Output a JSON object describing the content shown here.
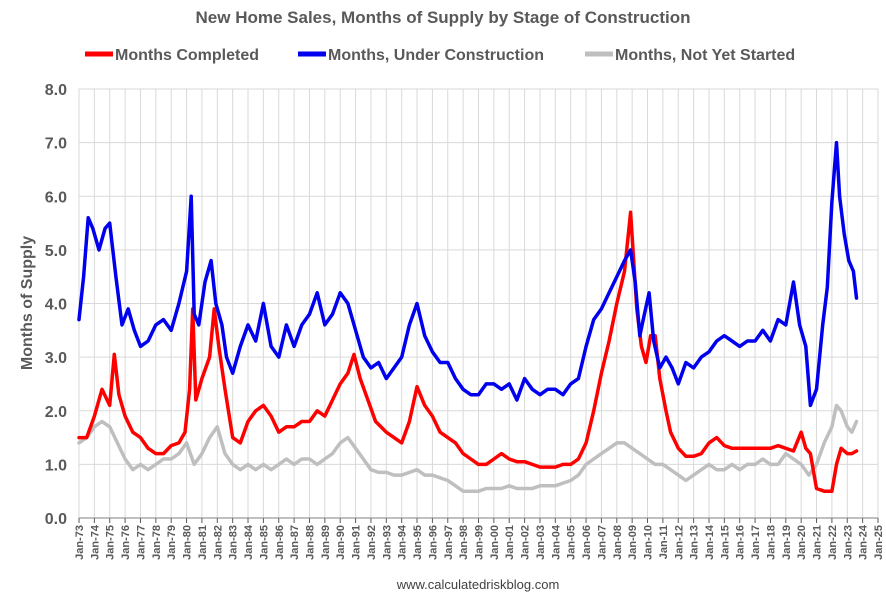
{
  "chart_data": {
    "type": "line",
    "title": "New Home Sales, Months of Supply by Stage of Construction",
    "ylabel": "Months of Supply",
    "xlabel": "",
    "source": "www.calculatedriskblog.com",
    "ylim": [
      0,
      8
    ],
    "yticks": [
      "0.0",
      "1.0",
      "2.0",
      "3.0",
      "4.0",
      "5.0",
      "6.0",
      "7.0",
      "8.0"
    ],
    "x_range": [
      1973,
      2025
    ],
    "xticks": [
      "Jan-73",
      "Jan-74",
      "Jan-75",
      "Jan-76",
      "Jan-77",
      "Jan-78",
      "Jan-79",
      "Jan-80",
      "Jan-81",
      "Jan-82",
      "Jan-83",
      "Jan-84",
      "Jan-85",
      "Jan-86",
      "Jan-87",
      "Jan-88",
      "Jan-89",
      "Jan-90",
      "Jan-91",
      "Jan-92",
      "Jan-93",
      "Jan-94",
      "Jan-95",
      "Jan-96",
      "Jan-97",
      "Jan-98",
      "Jan-99",
      "Jan-00",
      "Jan-01",
      "Jan-02",
      "Jan-03",
      "Jan-04",
      "Jan-05",
      "Jan-06",
      "Jan-07",
      "Jan-08",
      "Jan-09",
      "Jan-10",
      "Jan-11",
      "Jan-12",
      "Jan-13",
      "Jan-14",
      "Jan-15",
      "Jan-16",
      "Jan-17",
      "Jan-18",
      "Jan-19",
      "Jan-20",
      "Jan-21",
      "Jan-22",
      "Jan-23",
      "Jan-24",
      "Jan-25"
    ],
    "grid": true,
    "legend_position": "top",
    "series": [
      {
        "name": "Months Completed",
        "color": "#ff0000",
        "x": [
          1973.0,
          1973.5,
          1974.0,
          1974.5,
          1975.0,
          1975.3,
          1975.6,
          1976.0,
          1976.5,
          1977.0,
          1977.5,
          1978.0,
          1978.5,
          1979.0,
          1979.5,
          1979.9,
          1980.2,
          1980.4,
          1980.6,
          1981.0,
          1981.5,
          1981.8,
          1982.1,
          1982.5,
          1983.0,
          1983.5,
          1984.0,
          1984.5,
          1985.0,
          1985.5,
          1986.0,
          1986.5,
          1987.0,
          1987.5,
          1988.0,
          1988.5,
          1989.0,
          1989.5,
          1990.0,
          1990.5,
          1990.9,
          1991.3,
          1991.8,
          1992.3,
          1993.0,
          1993.5,
          1994.0,
          1994.5,
          1995.0,
          1995.5,
          1996.0,
          1996.5,
          1997.0,
          1997.5,
          1998.0,
          1998.5,
          1999.0,
          1999.5,
          2000.0,
          2000.5,
          2001.0,
          2001.5,
          2002.0,
          2002.5,
          2003.0,
          2003.5,
          2004.0,
          2004.5,
          2005.0,
          2005.5,
          2006.0,
          2006.5,
          2007.0,
          2007.5,
          2008.0,
          2008.5,
          2008.9,
          2009.1,
          2009.3,
          2009.6,
          2009.9,
          2010.2,
          2010.5,
          2010.8,
          2011.2,
          2011.5,
          2012.0,
          2012.5,
          2013.0,
          2013.5,
          2014.0,
          2014.5,
          2015.0,
          2015.5,
          2016.0,
          2016.5,
          2017.0,
          2017.5,
          2018.0,
          2018.5,
          2019.0,
          2019.5,
          2020.0,
          2020.3,
          2020.6,
          2021.0,
          2021.5,
          2022.0,
          2022.3,
          2022.6,
          2023.0,
          2023.3,
          2023.6
        ],
        "values": [
          1.5,
          1.5,
          1.9,
          2.4,
          2.1,
          3.05,
          2.3,
          1.9,
          1.6,
          1.5,
          1.3,
          1.2,
          1.2,
          1.35,
          1.4,
          1.6,
          2.4,
          3.9,
          2.2,
          2.6,
          3.0,
          3.9,
          3.2,
          2.4,
          1.5,
          1.4,
          1.8,
          2.0,
          2.1,
          1.9,
          1.6,
          1.7,
          1.7,
          1.8,
          1.8,
          2.0,
          1.9,
          2.2,
          2.5,
          2.7,
          3.05,
          2.6,
          2.2,
          1.8,
          1.6,
          1.5,
          1.4,
          1.8,
          2.45,
          2.1,
          1.9,
          1.6,
          1.5,
          1.4,
          1.2,
          1.1,
          1.0,
          1.0,
          1.1,
          1.2,
          1.1,
          1.05,
          1.05,
          1.0,
          0.95,
          0.95,
          0.95,
          1.0,
          1.0,
          1.1,
          1.4,
          2.0,
          2.7,
          3.3,
          4.0,
          4.6,
          5.7,
          4.8,
          3.9,
          3.2,
          2.9,
          3.4,
          3.4,
          2.6,
          2.0,
          1.6,
          1.3,
          1.15,
          1.15,
          1.2,
          1.4,
          1.5,
          1.35,
          1.3,
          1.3,
          1.3,
          1.3,
          1.3,
          1.3,
          1.35,
          1.3,
          1.25,
          1.6,
          1.3,
          1.2,
          0.55,
          0.5,
          0.5,
          1.0,
          1.3,
          1.2,
          1.2,
          1.25
        ]
      },
      {
        "name": "Months, Under Construction",
        "color": "#0000ee",
        "x": [
          1973.0,
          1973.3,
          1973.6,
          1973.9,
          1974.3,
          1974.7,
          1975.0,
          1975.4,
          1975.8,
          1976.2,
          1976.6,
          1977.0,
          1977.5,
          1978.0,
          1978.5,
          1979.0,
          1979.5,
          1980.0,
          1980.3,
          1980.5,
          1980.8,
          1981.2,
          1981.6,
          1981.9,
          1982.3,
          1982.6,
          1983.0,
          1983.5,
          1984.0,
          1984.5,
          1985.0,
          1985.5,
          1986.0,
          1986.5,
          1987.0,
          1987.5,
          1988.0,
          1988.5,
          1989.0,
          1989.5,
          1990.0,
          1990.5,
          1991.0,
          1991.5,
          1992.0,
          1992.5,
          1993.0,
          1993.5,
          1994.0,
          1994.5,
          1995.0,
          1995.5,
          1996.0,
          1996.5,
          1997.0,
          1997.5,
          1998.0,
          1998.5,
          1999.0,
          1999.5,
          2000.0,
          2000.5,
          2001.0,
          2001.5,
          2002.0,
          2002.5,
          2003.0,
          2003.5,
          2004.0,
          2004.5,
          2005.0,
          2005.5,
          2006.0,
          2006.5,
          2007.0,
          2007.5,
          2008.0,
          2008.5,
          2008.9,
          2009.2,
          2009.5,
          2009.8,
          2010.1,
          2010.4,
          2010.8,
          2011.2,
          2011.6,
          2012.0,
          2012.5,
          2013.0,
          2013.5,
          2014.0,
          2014.5,
          2015.0,
          2015.5,
          2016.0,
          2016.5,
          2017.0,
          2017.5,
          2018.0,
          2018.5,
          2019.0,
          2019.5,
          2019.9,
          2020.3,
          2020.6,
          2021.0,
          2021.4,
          2021.7,
          2022.0,
          2022.3,
          2022.5,
          2022.8,
          2023.1,
          2023.4,
          2023.6
        ],
        "values": [
          3.7,
          4.5,
          5.6,
          5.4,
          5.0,
          5.4,
          5.5,
          4.5,
          3.6,
          3.9,
          3.5,
          3.2,
          3.3,
          3.6,
          3.7,
          3.5,
          4.0,
          4.6,
          6.0,
          3.8,
          3.6,
          4.4,
          4.8,
          4.0,
          3.6,
          3.0,
          2.7,
          3.2,
          3.6,
          3.3,
          4.0,
          3.2,
          3.0,
          3.6,
          3.2,
          3.6,
          3.8,
          4.2,
          3.6,
          3.8,
          4.2,
          4.0,
          3.5,
          3.0,
          2.8,
          2.9,
          2.6,
          2.8,
          3.0,
          3.6,
          4.0,
          3.4,
          3.1,
          2.9,
          2.9,
          2.6,
          2.4,
          2.3,
          2.3,
          2.5,
          2.5,
          2.4,
          2.5,
          2.2,
          2.6,
          2.4,
          2.3,
          2.4,
          2.4,
          2.3,
          2.5,
          2.6,
          3.2,
          3.7,
          3.9,
          4.2,
          4.5,
          4.8,
          5.0,
          4.4,
          3.4,
          3.8,
          4.2,
          3.3,
          2.8,
          3.0,
          2.8,
          2.5,
          2.9,
          2.8,
          3.0,
          3.1,
          3.3,
          3.4,
          3.3,
          3.2,
          3.3,
          3.3,
          3.5,
          3.3,
          3.7,
          3.6,
          4.4,
          3.6,
          3.2,
          2.1,
          2.4,
          3.6,
          4.3,
          5.9,
          7.0,
          6.0,
          5.3,
          4.8,
          4.6,
          4.1
        ]
      },
      {
        "name": "Months, Not Yet Started",
        "color": "#bfbfbf",
        "x": [
          1973.0,
          1973.5,
          1974.0,
          1974.5,
          1975.0,
          1975.5,
          1976.0,
          1976.5,
          1977.0,
          1977.5,
          1978.0,
          1978.5,
          1979.0,
          1979.5,
          1980.0,
          1980.5,
          1981.0,
          1981.5,
          1982.0,
          1982.5,
          1983.0,
          1983.5,
          1984.0,
          1984.5,
          1985.0,
          1985.5,
          1986.0,
          1986.5,
          1987.0,
          1987.5,
          1988.0,
          1988.5,
          1989.0,
          1989.5,
          1990.0,
          1990.5,
          1991.0,
          1991.5,
          1992.0,
          1992.5,
          1993.0,
          1993.5,
          1994.0,
          1994.5,
          1995.0,
          1995.5,
          1996.0,
          1996.5,
          1997.0,
          1997.5,
          1998.0,
          1998.5,
          1999.0,
          1999.5,
          2000.0,
          2000.5,
          2001.0,
          2001.5,
          2002.0,
          2002.5,
          2003.0,
          2003.5,
          2004.0,
          2004.5,
          2005.0,
          2005.5,
          2006.0,
          2006.5,
          2007.0,
          2007.5,
          2008.0,
          2008.5,
          2009.0,
          2009.5,
          2010.0,
          2010.5,
          2011.0,
          2011.5,
          2012.0,
          2012.5,
          2013.0,
          2013.5,
          2014.0,
          2014.5,
          2015.0,
          2015.5,
          2016.0,
          2016.5,
          2017.0,
          2017.5,
          2018.0,
          2018.5,
          2019.0,
          2019.5,
          2020.0,
          2020.5,
          2021.0,
          2021.5,
          2022.0,
          2022.3,
          2022.6,
          2023.0,
          2023.3,
          2023.6
        ],
        "values": [
          1.4,
          1.5,
          1.7,
          1.8,
          1.7,
          1.4,
          1.1,
          0.9,
          1.0,
          0.9,
          1.0,
          1.1,
          1.1,
          1.2,
          1.4,
          1.0,
          1.2,
          1.5,
          1.7,
          1.2,
          1.0,
          0.9,
          1.0,
          0.9,
          1.0,
          0.9,
          1.0,
          1.1,
          1.0,
          1.1,
          1.1,
          1.0,
          1.1,
          1.2,
          1.4,
          1.5,
          1.3,
          1.1,
          0.9,
          0.85,
          0.85,
          0.8,
          0.8,
          0.85,
          0.9,
          0.8,
          0.8,
          0.75,
          0.7,
          0.6,
          0.5,
          0.5,
          0.5,
          0.55,
          0.55,
          0.55,
          0.6,
          0.55,
          0.55,
          0.55,
          0.6,
          0.6,
          0.6,
          0.65,
          0.7,
          0.8,
          1.0,
          1.1,
          1.2,
          1.3,
          1.4,
          1.4,
          1.3,
          1.2,
          1.1,
          1.0,
          1.0,
          0.9,
          0.8,
          0.7,
          0.8,
          0.9,
          1.0,
          0.9,
          0.9,
          1.0,
          0.9,
          1.0,
          1.0,
          1.1,
          1.0,
          1.0,
          1.2,
          1.1,
          1.0,
          0.8,
          1.0,
          1.4,
          1.7,
          2.1,
          2.0,
          1.7,
          1.6,
          1.8
        ]
      }
    ]
  }
}
